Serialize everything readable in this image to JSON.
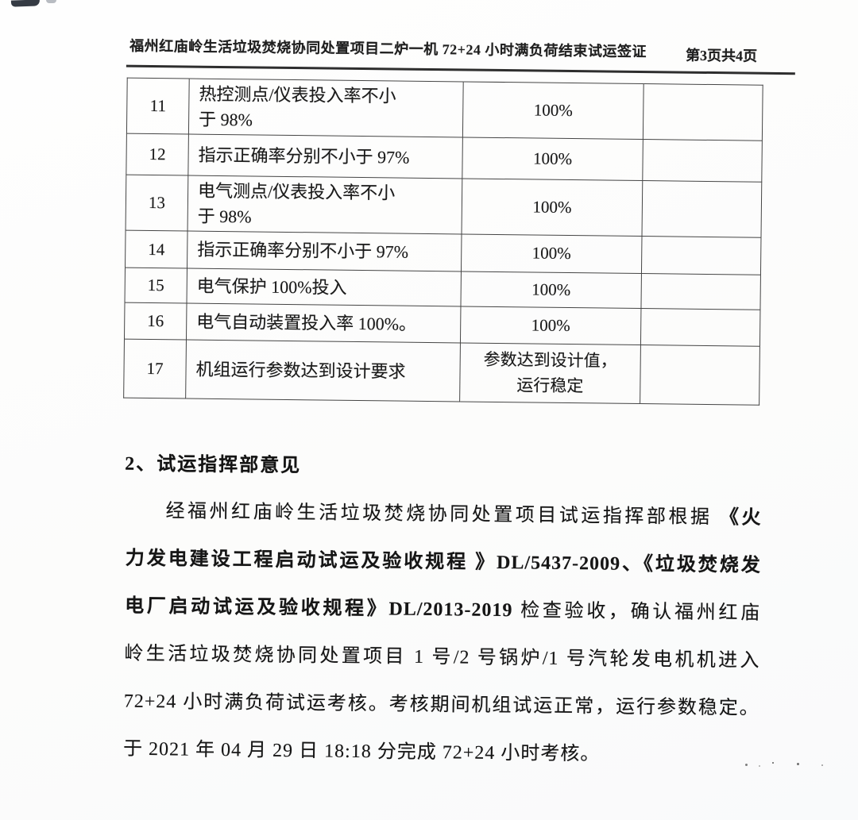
{
  "header": {
    "title": "福州红庙岭生活垃圾焚烧协同处置项目二炉一机 72+24 小时满负荷结束试运签证",
    "page_indicator": "第3页共4页"
  },
  "table": {
    "rows": [
      {
        "no": "11",
        "item": "热控测点/仪表投入率不小\n于 98%",
        "result": "100%",
        "remark": ""
      },
      {
        "no": "12",
        "item": "指示正确率分别不小于 97%",
        "result": "100%",
        "remark": ""
      },
      {
        "no": "13",
        "item": "电气测点/仪表投入率不小\n于 98%",
        "result": "100%",
        "remark": ""
      },
      {
        "no": "14",
        "item": "指示正确率分别不小于 97%",
        "result": "100%",
        "remark": ""
      },
      {
        "no": "15",
        "item": "电气保护 100%投入",
        "result": "100%",
        "remark": ""
      },
      {
        "no": "16",
        "item": "电气自动装置投入率 100%。",
        "result": "100%",
        "remark": ""
      },
      {
        "no": "17",
        "item": "机组运行参数达到设计要求",
        "result": "参数达到设计值，\n运行稳定",
        "remark": ""
      }
    ]
  },
  "section": {
    "heading": "2、试运指挥部意见",
    "lines": [
      {
        "indent": true,
        "justify": true,
        "segments": [
          {
            "text": "经福州红庙岭生活垃圾焚烧协同处置项目试运指挥部根据",
            "bold": false
          },
          {
            "text": " 《火",
            "bold": true
          }
        ]
      },
      {
        "indent": false,
        "justify": true,
        "segments": [
          {
            "text": "力发电建设工程启动试运及验收规程 》DL/5437-2009、《垃圾焚烧发",
            "bold": true
          }
        ]
      },
      {
        "indent": false,
        "justify": true,
        "segments": [
          {
            "text": "电厂启动试运及验收规程》DL/2013-2019",
            "bold": true
          },
          {
            "text": " 检查验收，确认福州红庙",
            "bold": false
          }
        ]
      },
      {
        "indent": false,
        "justify": true,
        "segments": [
          {
            "text": "岭生活垃圾焚烧协同处置项目 1 号/2 号锅炉/1 号汽轮发电机机进入",
            "bold": false
          }
        ]
      },
      {
        "indent": false,
        "justify": true,
        "segments": [
          {
            "text": "72+24 小时满负荷试运考核。考核期间机组试运正常，运行参数稳定。",
            "bold": false
          }
        ]
      },
      {
        "indent": false,
        "justify": false,
        "segments": [
          {
            "text": "于 2021 年 04 月 29 日 18:18 分完成 72+24 小时考核。",
            "bold": false
          }
        ]
      }
    ]
  }
}
